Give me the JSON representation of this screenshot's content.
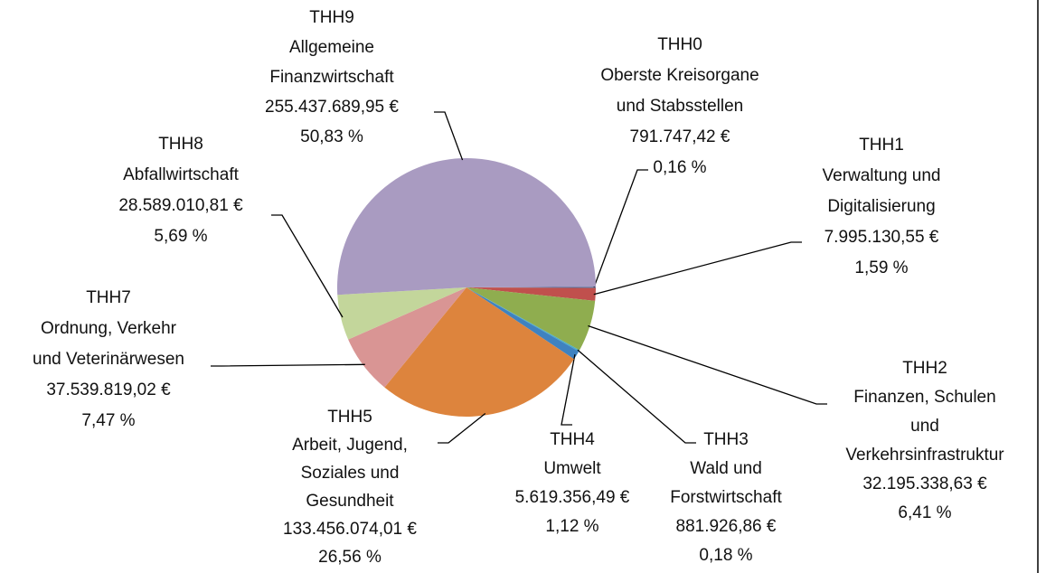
{
  "chart_data": {
    "type": "pie",
    "categories": [
      [
        "THH0",
        "Oberste Kreisorgane",
        "und Stabsstellen"
      ],
      [
        "THH1",
        "Verwaltung und",
        "Digitalisierung"
      ],
      [
        "THH2",
        "Finanzen, Schulen",
        "und",
        "Verkehrsinfrastruktur"
      ],
      [
        "THH3",
        "Wald und",
        "Forstwirtschaft"
      ],
      [
        "THH4",
        "Umwelt"
      ],
      [
        "THH5",
        "Arbeit, Jugend,",
        "Soziales und",
        "Gesundheit"
      ],
      [
        "THH7",
        "Ordnung, Verkehr",
        "und Veterinärwesen"
      ],
      [
        "THH8",
        "Abfallwirtschaft"
      ],
      [
        "THH9",
        "Allgemeine",
        "Finanzwirtschaft"
      ]
    ],
    "values": [
      791747.42,
      7995130.55,
      32195338.63,
      881926.86,
      5619356.49,
      133456074.01,
      37539819.02,
      28589010.81,
      255437689.95
    ],
    "value_labels": [
      "791.747,42 €",
      "7.995.130,55 €",
      "32.195.338,63 €",
      "881.926,86 €",
      "5.619.356,49 €",
      "133.456.074,01 €",
      "37.539.819,02 €",
      "28.589.010,81 €",
      "255.437.689,95 €"
    ],
    "percents": [
      0.16,
      1.59,
      6.41,
      0.18,
      1.12,
      26.56,
      7.47,
      5.69,
      50.83
    ],
    "percent_labels": [
      "0,16 %",
      "1,59 %",
      "6,41 %",
      "0,18 %",
      "1,12 %",
      "26,56 %",
      "7,47 %",
      "5,69 %",
      "50,83 %"
    ],
    "colors": [
      "#4f6d9a",
      "#c0504d",
      "#8fad4f",
      "#4bacc6",
      "#3f82c0",
      "#dd843d",
      "#d99594",
      "#c3d69b",
      "#a99bc1"
    ]
  }
}
